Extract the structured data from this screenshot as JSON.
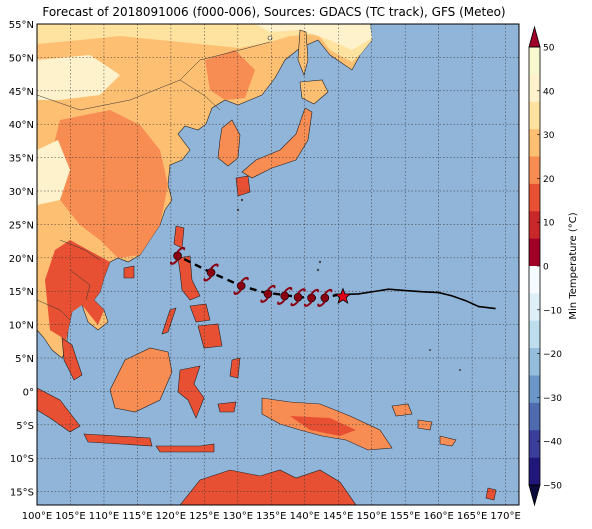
{
  "title": "Forecast of 2018091006 (f000-006), Sources: GDACS (TC track), GFS (Meteo)",
  "map": {
    "lon_range": [
      100,
      172
    ],
    "lat_range": [
      -17,
      55
    ],
    "lon_ticks": [
      "100°E",
      "105°E",
      "110°E",
      "115°E",
      "120°E",
      "125°E",
      "130°E",
      "135°E",
      "140°E",
      "145°E",
      "150°E",
      "155°E",
      "160°E",
      "165°E",
      "170°E"
    ],
    "lat_ticks": [
      "55°N",
      "50°N",
      "45°N",
      "40°N",
      "35°N",
      "30°N",
      "25°N",
      "20°N",
      "15°N",
      "10°N",
      "5°N",
      "0°",
      "5°S",
      "10°S",
      "15°S"
    ],
    "ocean_color": "#91b4d9",
    "gridlines": true
  },
  "colorbar": {
    "label": "Min Temperature (°C)",
    "ticks": [
      "50",
      "40",
      "30",
      "20",
      "10",
      "0",
      "−10",
      "−20",
      "−30",
      "−40",
      "−50"
    ],
    "colors": [
      "#f8f8d0",
      "#fdf2cc",
      "#fee2a0",
      "#fdbf72",
      "#f88d53",
      "#e85033",
      "#c8282a",
      "#9e0027",
      "#f5fbff",
      "#deeff8",
      "#bfdeed",
      "#93bddb",
      "#6b97c8",
      "#4f6bb0",
      "#3b3e9a",
      "#21177a"
    ]
  },
  "track": {
    "past": [
      [
        145.2,
        14.5
      ],
      [
        148,
        14.6
      ],
      [
        150,
        14.9
      ],
      [
        152.5,
        15.3
      ],
      [
        155,
        15.1
      ],
      [
        158,
        14.9
      ],
      [
        160,
        14.8
      ],
      [
        162,
        14.3
      ],
      [
        164,
        13.6
      ],
      [
        166,
        12.7
      ],
      [
        168.5,
        12.4
      ]
    ],
    "forecast": [
      [
        145.2,
        14.5
      ],
      [
        142.5,
        14.0
      ],
      [
        140.5,
        14.0
      ],
      [
        138.5,
        14.2
      ],
      [
        136.5,
        14.5
      ],
      [
        134,
        14.8
      ],
      [
        130.5,
        15.8
      ],
      [
        126,
        17.8
      ],
      [
        121,
        20.3
      ]
    ],
    "current_position": [
      145.7,
      14.2
    ],
    "symbols": [
      [
        121,
        20.3
      ],
      [
        126,
        17.8
      ],
      [
        130.5,
        15.8
      ],
      [
        134.5,
        14.6
      ],
      [
        137,
        14.3
      ],
      [
        139,
        14.1
      ],
      [
        141,
        14.0
      ],
      [
        143,
        14.0
      ]
    ]
  }
}
